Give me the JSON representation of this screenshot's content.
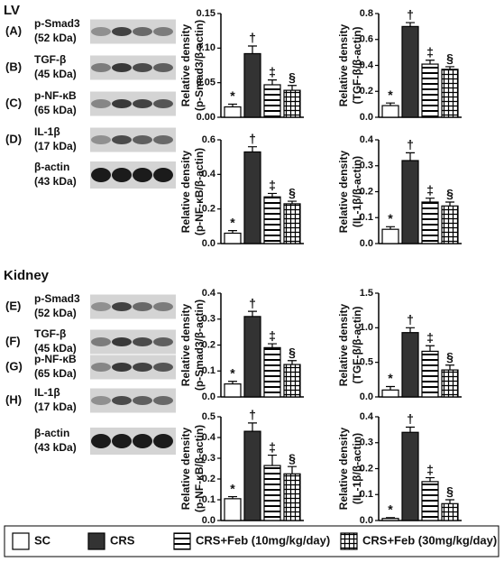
{
  "sections": [
    {
      "title": "LV",
      "rows": [
        {
          "letter": "(A)",
          "protein": "p-Smad3",
          "size": "(52 kDa)"
        },
        {
          "letter": "(B)",
          "protein": "TGF-β",
          "size": "(45 kDa)"
        },
        {
          "letter": "(C)",
          "protein": "p-NF-κB",
          "size": "(65 kDa)"
        },
        {
          "letter": "(D)",
          "protein": "IL-1β",
          "size": "(17 kDa)"
        },
        {
          "protein": "β-actin",
          "size": "(43 kDa)"
        }
      ]
    },
    {
      "title": "Kidney",
      "rows": [
        {
          "letter": "(E)",
          "protein": "p-Smad3",
          "size": "(52 kDa)"
        },
        {
          "letter": "(F)",
          "protein": "TGF-β",
          "size": "(45 kDa)"
        },
        {
          "letter": "(G)",
          "protein": "p-NF-κB",
          "size": "(65 kDa)"
        },
        {
          "letter": "(H)",
          "protein": "IL-1β",
          "size": "(17 kDa)"
        },
        {
          "protein": "β-actin",
          "size": "(43 kDa)"
        }
      ]
    }
  ],
  "legend": [
    {
      "name": "SC",
      "pattern": "none",
      "color": "#ffffff"
    },
    {
      "name": "CRS",
      "pattern": "solid",
      "color": "#333333"
    },
    {
      "name": "CRS+Feb (10mg/kg/day)",
      "pattern": "hlines",
      "color": "#ffffff"
    },
    {
      "name": "CRS+Feb (30mg/kg/day)",
      "pattern": "grid",
      "color": "#ffffff"
    }
  ],
  "chart_data": [
    {
      "type": "bar",
      "ylabel": [
        "Relative density",
        "(p-Smad3/β-actin)"
      ],
      "values": [
        0.015,
        0.092,
        0.047,
        0.039
      ],
      "errors": [
        0.004,
        0.011,
        0.007,
        0.007
      ],
      "annotations": [
        "*",
        "†",
        "‡",
        "§"
      ],
      "ylim": [
        0,
        0.15
      ],
      "yticks": [
        {
          "value": 0,
          "label": "0.00"
        },
        0.05,
        {
          "value": 0.1,
          "label": "0.10"
        },
        0.15
      ]
    },
    {
      "type": "bar",
      "ylabel": [
        "Relative density",
        "(TGF-β/β-actin)"
      ],
      "values": [
        0.09,
        0.7,
        0.41,
        0.37
      ],
      "errors": [
        0.02,
        0.03,
        0.03,
        0.02
      ],
      "annotations": [
        "*",
        "†",
        "‡",
        "§"
      ],
      "ylim": [
        0,
        0.8
      ],
      "yticks": [
        {
          "value": 0,
          "label": "0.0"
        },
        0.2,
        0.4,
        0.6,
        0.8
      ]
    },
    {
      "type": "bar",
      "ylabel": [
        "Relative density",
        "(p-NF-κB/β-actin)"
      ],
      "values": [
        0.06,
        0.53,
        0.27,
        0.23
      ],
      "errors": [
        0.015,
        0.03,
        0.02,
        0.015
      ],
      "annotations": [
        "*",
        "†",
        "‡",
        "§"
      ],
      "ylim": [
        0,
        0.6
      ],
      "yticks": [
        {
          "value": 0,
          "label": "0.0"
        },
        0.2,
        0.4,
        0.6
      ]
    },
    {
      "type": "bar",
      "ylabel": [
        "Relative density",
        "(IL-1β/β-actin)"
      ],
      "values": [
        0.055,
        0.32,
        0.16,
        0.145
      ],
      "errors": [
        0.01,
        0.03,
        0.015,
        0.015
      ],
      "annotations": [
        "*",
        "†",
        "‡",
        "§"
      ],
      "ylim": [
        0,
        0.4
      ],
      "yticks": [
        {
          "value": 0,
          "label": "0.0"
        },
        0.1,
        0.2,
        0.3,
        0.4
      ]
    },
    {
      "type": "bar",
      "ylabel": [
        "Relative density",
        "(p-Smad3/β-actin)"
      ],
      "values": [
        0.05,
        0.31,
        0.19,
        0.125
      ],
      "errors": [
        0.01,
        0.02,
        0.015,
        0.015
      ],
      "annotations": [
        "*",
        "†",
        "‡",
        "§"
      ],
      "ylim": [
        0,
        0.4
      ],
      "yticks": [
        {
          "value": 0,
          "label": "0.0"
        },
        0.1,
        0.2,
        0.3,
        0.4
      ]
    },
    {
      "type": "bar",
      "ylabel": [
        "Relative density",
        "(TGF-β/β-actin)"
      ],
      "values": [
        0.1,
        0.93,
        0.66,
        0.39
      ],
      "errors": [
        0.05,
        0.07,
        0.08,
        0.07
      ],
      "annotations": [
        "*",
        "†",
        "‡",
        "§"
      ],
      "ylim": [
        0,
        1.5
      ],
      "yticks": [
        {
          "value": 0,
          "label": "0.0"
        },
        0.5,
        {
          "value": 1,
          "label": "1.0"
        },
        1.5
      ]
    },
    {
      "type": "bar",
      "ylabel": [
        "Relative density",
        "(p-NF-κB/β-actin)"
      ],
      "values": [
        0.105,
        0.43,
        0.265,
        0.225
      ],
      "errors": [
        0.01,
        0.04,
        0.05,
        0.035
      ],
      "annotations": [
        "*",
        "†",
        "‡",
        "§"
      ],
      "ylim": [
        0,
        0.5
      ],
      "yticks": [
        {
          "value": 0,
          "label": "0.0"
        },
        0.1,
        0.2,
        0.3,
        0.4,
        0.5
      ]
    },
    {
      "type": "bar",
      "ylabel": [
        "Relative density",
        "(IL-1β/β-actin)"
      ],
      "values": [
        0.008,
        0.34,
        0.15,
        0.065
      ],
      "errors": [
        0.003,
        0.02,
        0.015,
        0.015
      ],
      "annotations": [
        "*",
        "†",
        "‡",
        "§"
      ],
      "ylim": [
        0,
        0.4
      ],
      "yticks": [
        {
          "value": 0,
          "label": "0.0"
        },
        0.1,
        0.2,
        0.3,
        0.4
      ]
    }
  ]
}
